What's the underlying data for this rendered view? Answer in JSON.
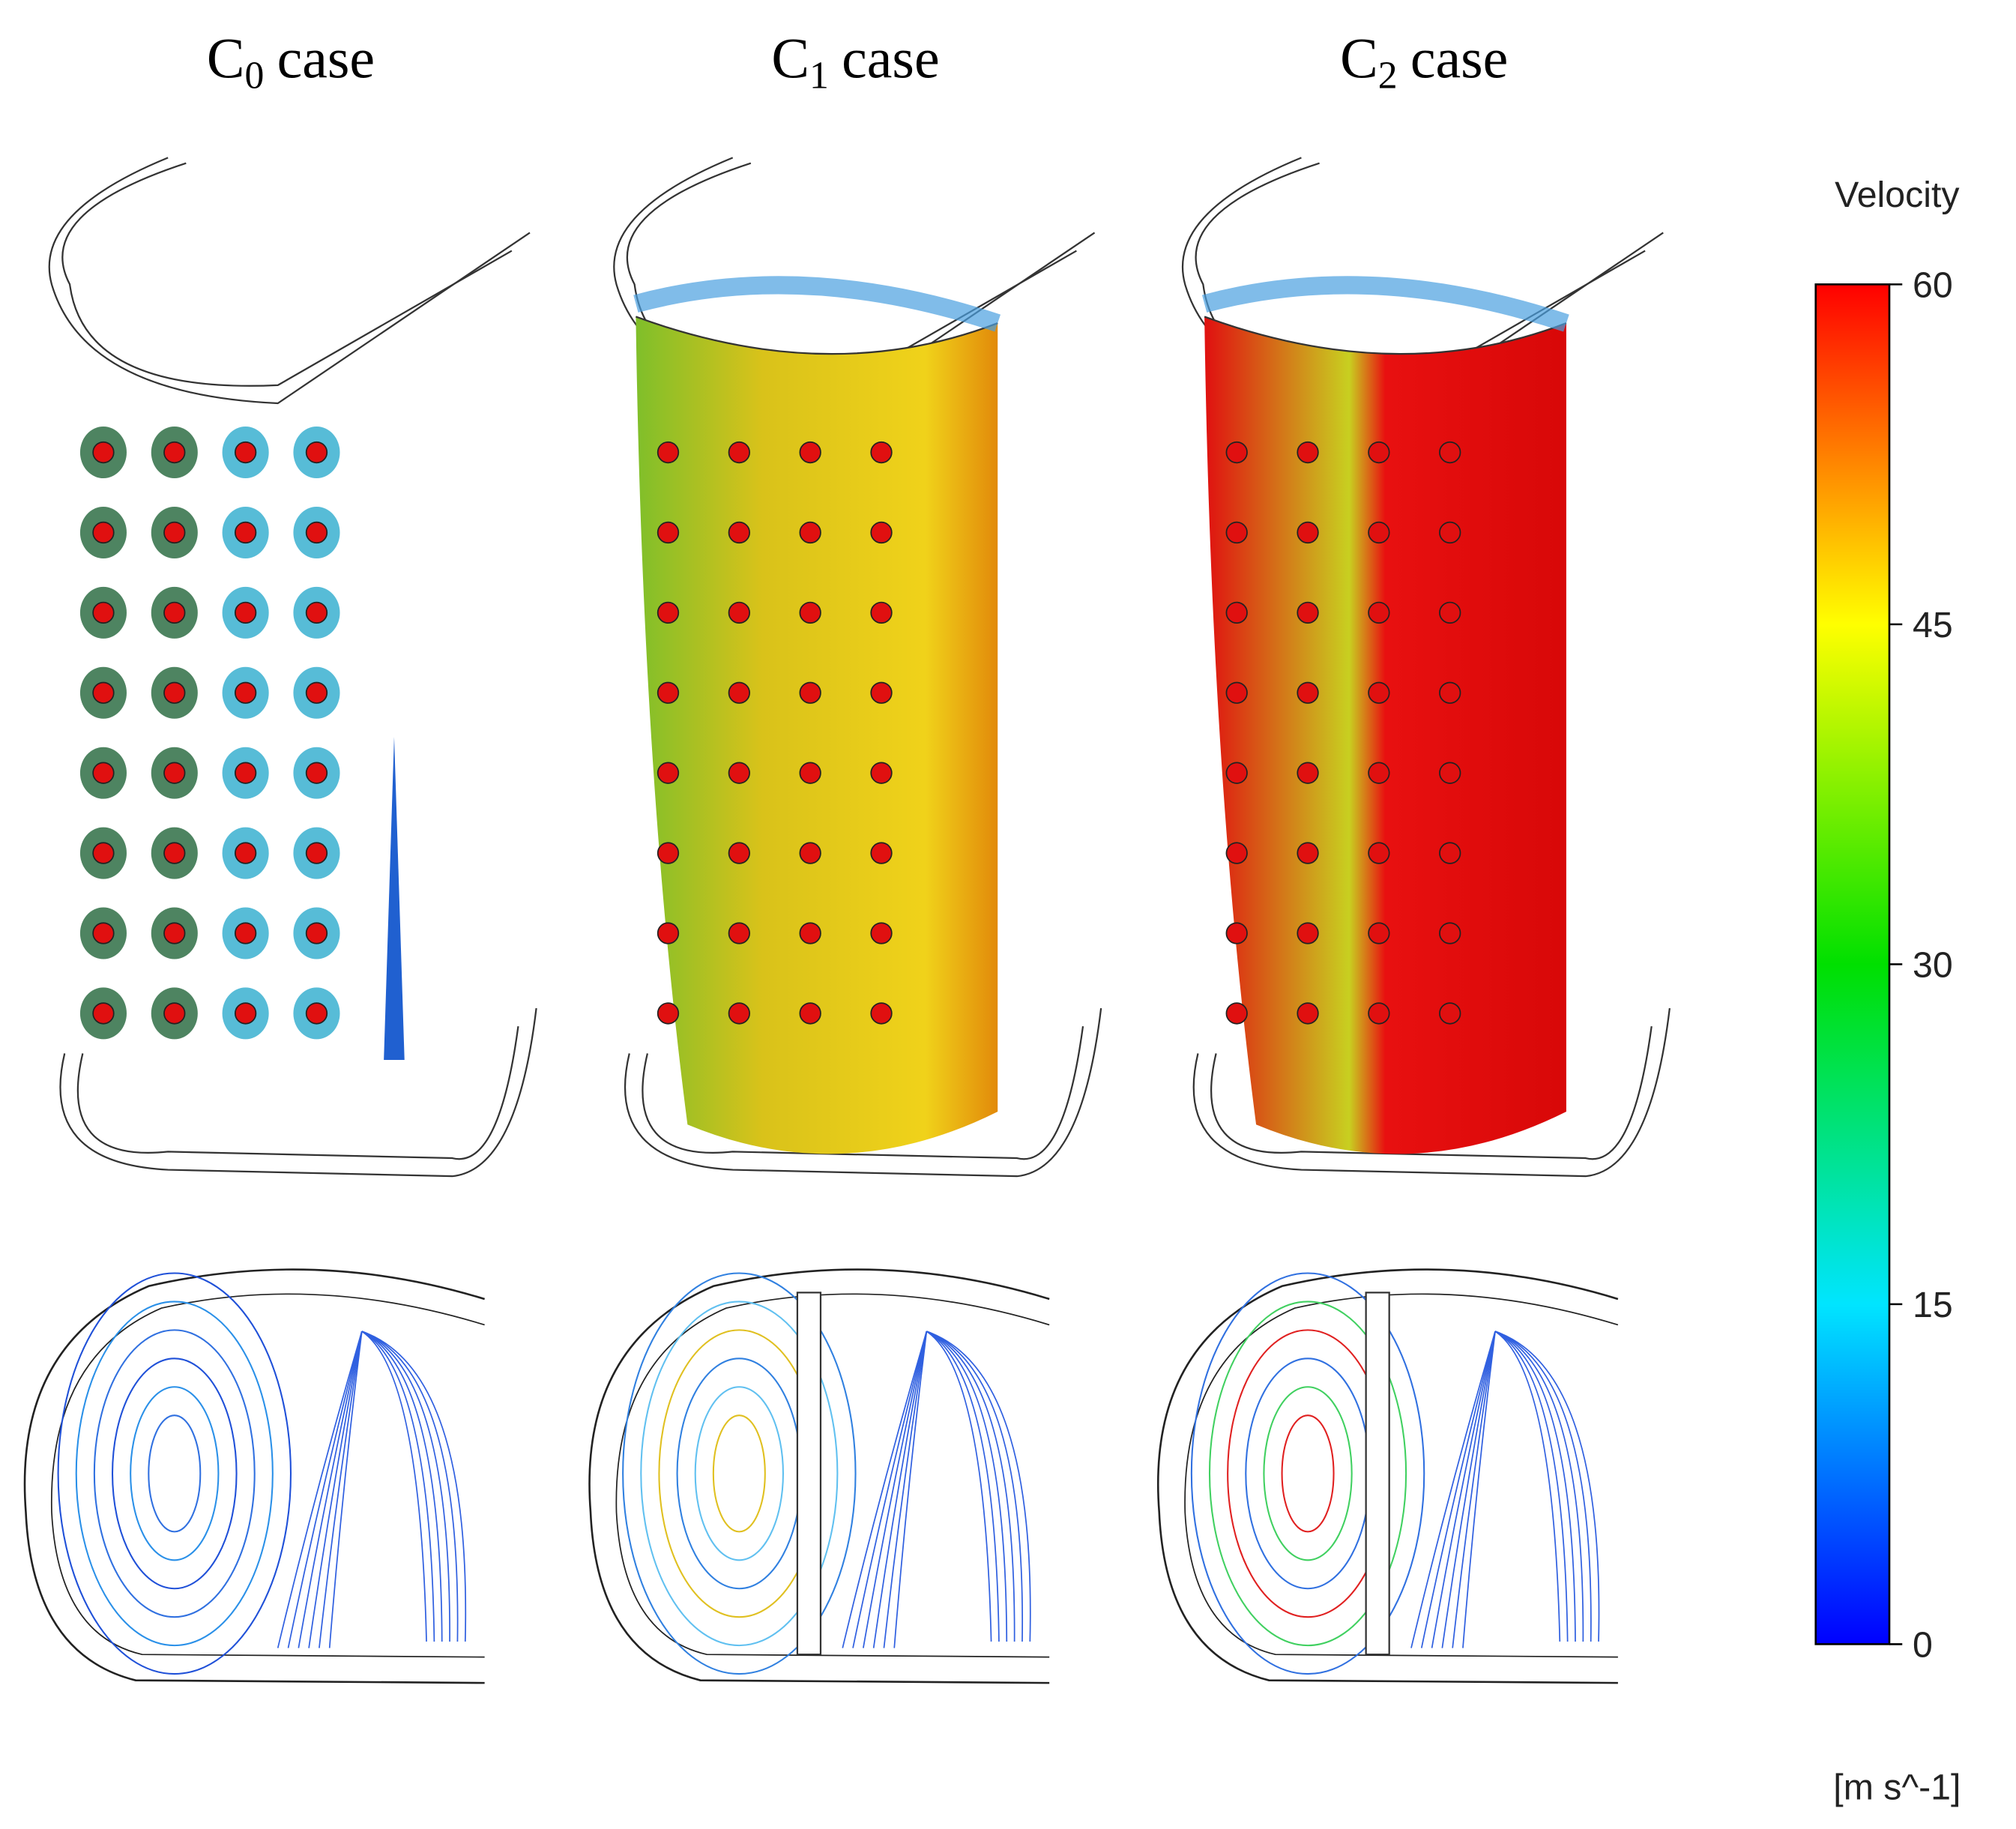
{
  "panels": [
    {
      "letter": "C",
      "subscript": "0",
      "suffix": "case"
    },
    {
      "letter": "C",
      "subscript": "1",
      "suffix": "case"
    },
    {
      "letter": "C",
      "subscript": "2",
      "suffix": "case"
    }
  ],
  "colorbar": {
    "title": "Velocity",
    "unit": "[m s^-1]",
    "range": [
      0,
      60
    ],
    "ticks": [
      0,
      15,
      30,
      45,
      60
    ]
  }
}
